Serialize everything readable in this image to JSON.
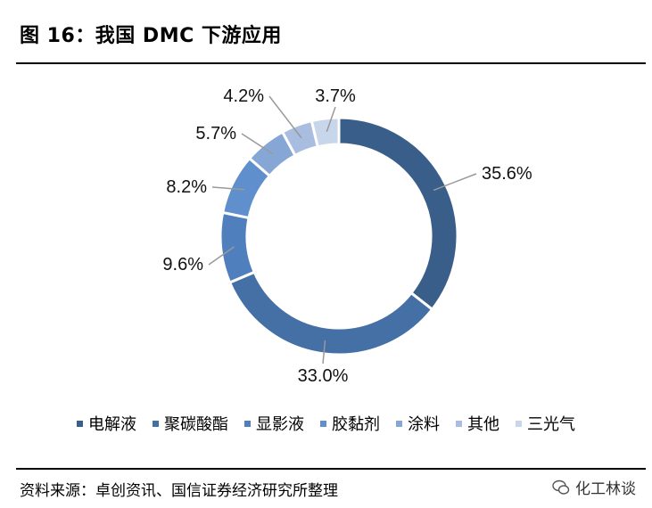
{
  "header": {
    "title": "图 16：我国 DMC 下游应用"
  },
  "chart_data": {
    "type": "pie",
    "donut": true,
    "categories": [
      "电解液",
      "聚碳酸酯",
      "显影液",
      "胶黏剂",
      "涂料",
      "其他",
      "三光气"
    ],
    "values": [
      35.6,
      33.0,
      9.6,
      8.2,
      5.7,
      4.2,
      3.7
    ],
    "value_labels": [
      "35.6%",
      "33.0%",
      "9.6%",
      "8.2%",
      "5.7%",
      "4.2%",
      "3.7%"
    ],
    "colors": [
      "#3a5e8a",
      "#4470a6",
      "#4f7fbd",
      "#5f8fcc",
      "#86a6d6",
      "#a8bde0",
      "#c8d6ec"
    ],
    "legend_position": "bottom"
  },
  "footer": {
    "source": "资料来源：卓创资讯、国信证券经济研究所整理",
    "watermark": "化工林谈"
  }
}
